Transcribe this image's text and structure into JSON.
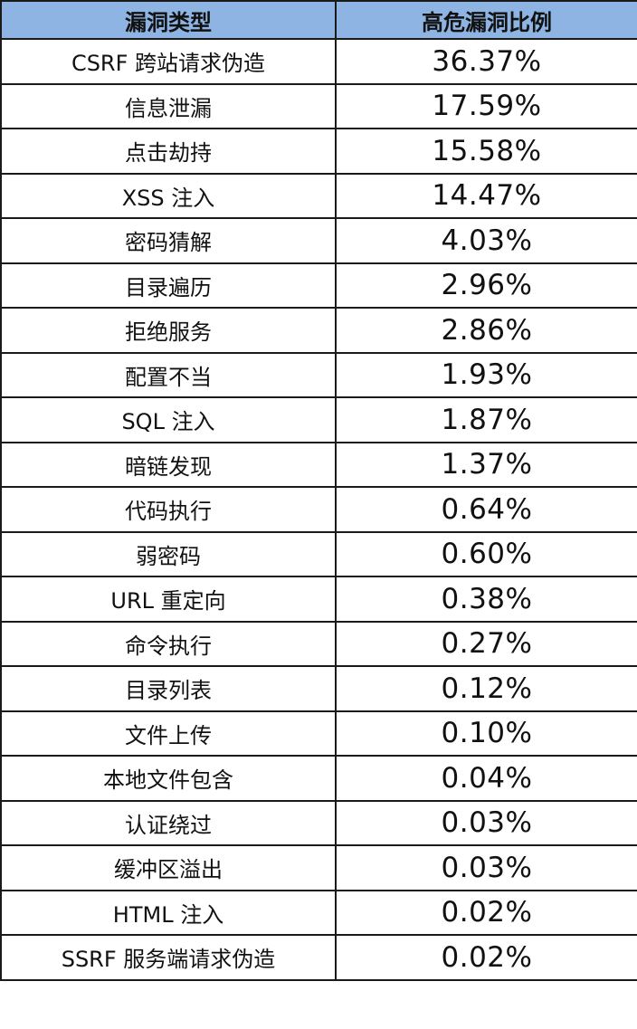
{
  "colors": {
    "header_bg": "#8db4e2",
    "border": "#1a1a1a",
    "row_bg": "#ffffff"
  },
  "table": {
    "headers": [
      "漏洞类型",
      "高危漏洞比例"
    ],
    "rows": [
      {
        "type": "CSRF 跨站请求伪造",
        "ratio": "36.37%"
      },
      {
        "type": "信息泄漏",
        "ratio": "17.59%"
      },
      {
        "type": "点击劫持",
        "ratio": "15.58%"
      },
      {
        "type": "XSS 注入",
        "ratio": "14.47%"
      },
      {
        "type": "密码猜解",
        "ratio": "4.03%"
      },
      {
        "type": "目录遍历",
        "ratio": "2.96%"
      },
      {
        "type": "拒绝服务",
        "ratio": "2.86%"
      },
      {
        "type": "配置不当",
        "ratio": "1.93%"
      },
      {
        "type": "SQL 注入",
        "ratio": "1.87%"
      },
      {
        "type": "暗链发现",
        "ratio": "1.37%"
      },
      {
        "type": "代码执行",
        "ratio": "0.64%"
      },
      {
        "type": "弱密码",
        "ratio": "0.60%"
      },
      {
        "type": "URL 重定向",
        "ratio": "0.38%"
      },
      {
        "type": "命令执行",
        "ratio": "0.27%"
      },
      {
        "type": "目录列表",
        "ratio": "0.12%"
      },
      {
        "type": "文件上传",
        "ratio": "0.10%"
      },
      {
        "type": "本地文件包含",
        "ratio": "0.04%"
      },
      {
        "type": "认证绕过",
        "ratio": "0.03%"
      },
      {
        "type": "缓冲区溢出",
        "ratio": "0.03%"
      },
      {
        "type": "HTML 注入",
        "ratio": "0.02%"
      },
      {
        "type": "SSRF 服务端请求伪造",
        "ratio": "0.02%"
      }
    ]
  }
}
